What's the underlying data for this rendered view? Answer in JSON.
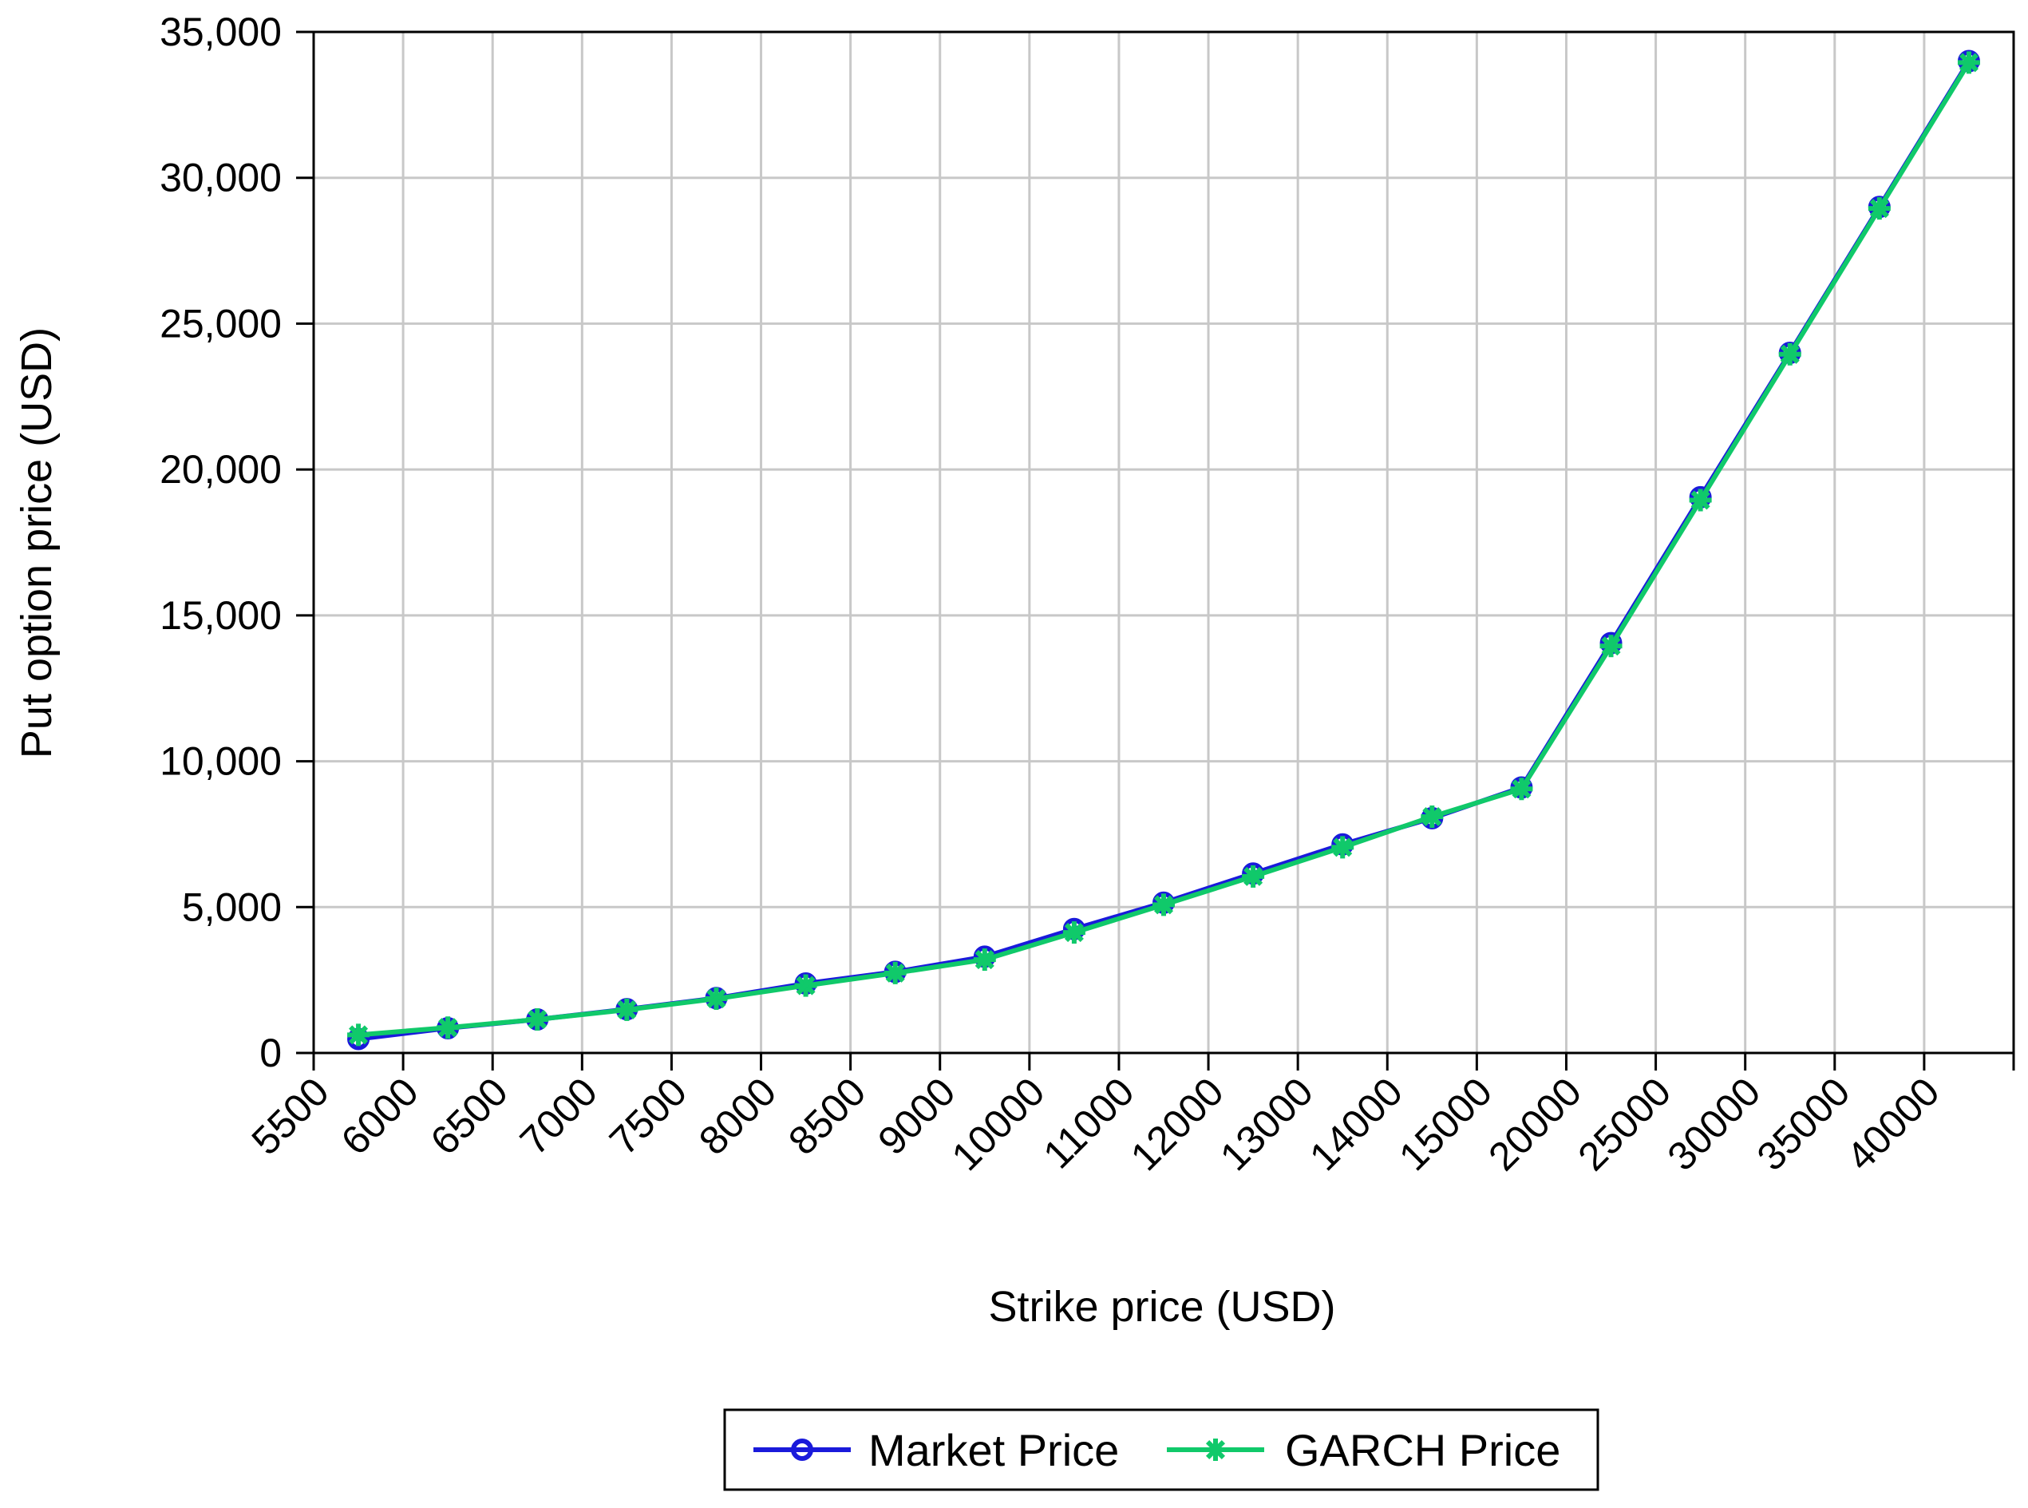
{
  "chart_data": {
    "type": "line",
    "title": "",
    "xlabel": "Strike price (USD)",
    "ylabel": "Put option price (USD)",
    "x_categories": [
      "5500",
      "6000",
      "6500",
      "7000",
      "7500",
      "8000",
      "8500",
      "9000",
      "10000",
      "11000",
      "12000",
      "13000",
      "14000",
      "15000",
      "20000",
      "25000",
      "30000",
      "35000",
      "40000"
    ],
    "y_ticks": [
      "0",
      "5,000",
      "10,000",
      "15,000",
      "20,000",
      "25,000",
      "30,000",
      "35,000"
    ],
    "ylim": [
      0,
      35000
    ],
    "grid": true,
    "legend_position": "bottom",
    "series": [
      {
        "name": "Market Price",
        "color": "#1a1adb",
        "marker": "circle",
        "values": [
          480,
          850,
          1150,
          1500,
          1880,
          2380,
          2780,
          3300,
          4250,
          5150,
          6150,
          7150,
          8050,
          9100,
          14050,
          19050,
          24000,
          29000,
          34000
        ]
      },
      {
        "name": "GARCH Price",
        "color": "#10c96a",
        "marker": "asterisk",
        "values": [
          620,
          870,
          1150,
          1480,
          1860,
          2310,
          2740,
          3200,
          4130,
          5080,
          6050,
          7050,
          8100,
          9050,
          13950,
          18950,
          23950,
          28950,
          33950
        ]
      }
    ]
  }
}
